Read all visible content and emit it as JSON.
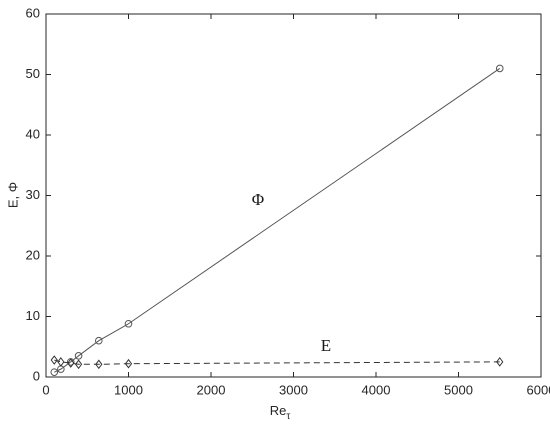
{
  "chart_data": {
    "type": "line",
    "xlabel": "Re",
    "xlabel_subscript": "τ",
    "ylabel": "E, Φ",
    "xlim": [
      0,
      6000
    ],
    "xticks": [
      0,
      1000,
      2000,
      3000,
      4000,
      5000,
      6000
    ],
    "ylim": [
      0,
      60
    ],
    "yticks": [
      0,
      10,
      20,
      30,
      40,
      50,
      60
    ],
    "grid": false,
    "series": [
      {
        "name": "Φ",
        "color": "#555555",
        "linestyle": "solid",
        "marker": "circle",
        "x": [
          100,
          180,
          300,
          395,
          640,
          1000,
          5500
        ],
        "values": [
          0.8,
          1.3,
          2.5,
          3.5,
          6.0,
          8.8,
          51.0
        ]
      },
      {
        "name": "E",
        "color": "#333333",
        "linestyle": "dashed",
        "marker": "diamond",
        "x": [
          100,
          180,
          300,
          395,
          640,
          1000,
          5500
        ],
        "values": [
          2.8,
          2.5,
          2.3,
          2.1,
          2.1,
          2.2,
          2.5
        ]
      }
    ]
  }
}
